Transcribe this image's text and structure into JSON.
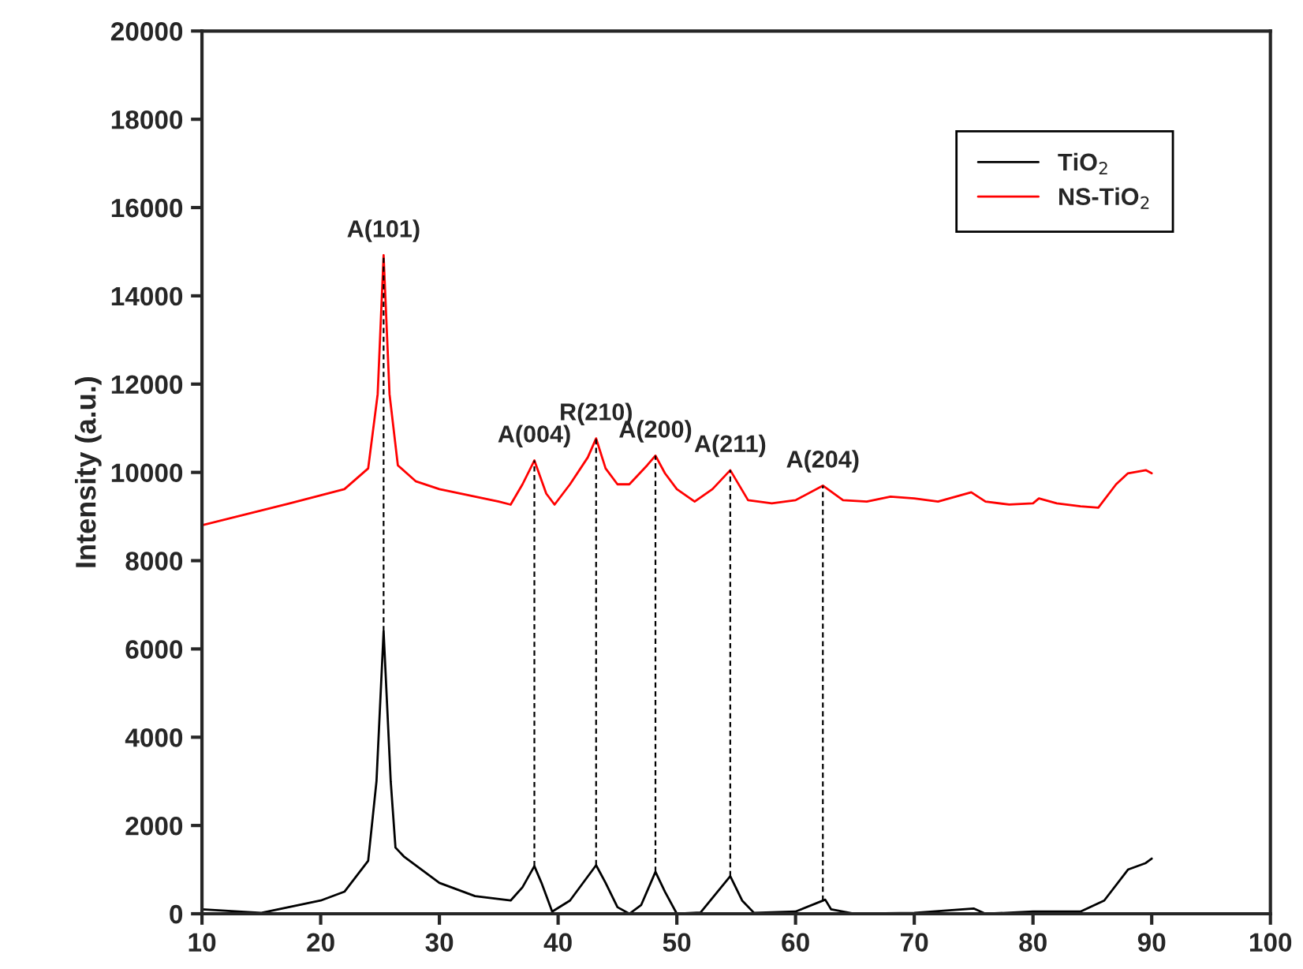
{
  "chart_data": {
    "type": "line",
    "ylabel": "Intensity (a.u.)",
    "xlim": [
      10,
      100
    ],
    "xticks": [
      10,
      20,
      30,
      40,
      50,
      60,
      70,
      80,
      90,
      100
    ],
    "ylim": [
      0,
      20000
    ],
    "yticks": [
      0,
      2000,
      4000,
      6000,
      8000,
      10000,
      12000,
      14000,
      16000,
      18000,
      20000
    ],
    "grid": false,
    "legend": "top right",
    "series": [
      {
        "name": "TiO$_{2}$",
        "color": "#000000",
        "x": [
          10,
          15,
          20,
          22,
          24,
          24.7,
          25.3,
          25.9,
          26.3,
          27,
          30,
          33,
          36,
          37,
          38,
          38.6,
          39.5,
          41,
          43.2,
          44,
          45,
          46,
          47,
          48.2,
          49,
          50,
          52,
          54.5,
          55.5,
          56.5,
          60,
          62.5,
          63,
          65,
          70,
          75,
          76,
          80,
          84,
          86,
          88,
          89.5,
          90
        ],
        "values": [
          100,
          20,
          300,
          500,
          1200,
          3000,
          6400,
          3000,
          1500,
          1300,
          700,
          400,
          300,
          600,
          1080,
          700,
          50,
          300,
          1100,
          700,
          150,
          0,
          200,
          950,
          500,
          0,
          30,
          850,
          300,
          20,
          50,
          320,
          100,
          0,
          20,
          120,
          0,
          50,
          50,
          300,
          1000,
          1150,
          1250
        ]
      },
      {
        "name": "NS-TiO$_{2}$",
        "color": "#ff0000",
        "x": [
          10,
          17.4,
          22,
          24,
          24.8,
          25.3,
          25.8,
          26.5,
          28,
          30,
          35,
          36,
          37,
          38,
          39,
          39.7,
          41,
          42.5,
          43.2,
          44,
          45,
          46,
          47.5,
          48.2,
          49,
          50,
          51.5,
          53,
          54.5,
          56,
          58,
          60,
          62.3,
          64,
          66,
          68,
          70,
          72,
          74.8,
          76,
          78,
          80,
          80.5,
          82,
          84,
          85.5,
          87,
          88,
          89.5,
          90
        ],
        "values": [
          8800,
          9300,
          9620,
          10090,
          11770,
          14920,
          11770,
          10160,
          9800,
          9620,
          9340,
          9270,
          9730,
          10270,
          9520,
          9270,
          9730,
          10340,
          10770,
          10090,
          9730,
          9730,
          10160,
          10380,
          9980,
          9620,
          9340,
          9620,
          10050,
          9370,
          9300,
          9370,
          9700,
          9370,
          9340,
          9450,
          9410,
          9340,
          9550,
          9340,
          9270,
          9300,
          9410,
          9300,
          9230,
          9200,
          9730,
          9980,
          10050,
          9980
        ]
      }
    ],
    "annotations": [
      {
        "text": "A(101)",
        "x": 25.3,
        "y": 14920
      },
      {
        "text": "A(004)",
        "x": 38.0,
        "y": 10270
      },
      {
        "text": "R(210)",
        "x": 43.2,
        "y": 10770
      },
      {
        "text": "A(200)",
        "x": 48.2,
        "y": 10380
      },
      {
        "text": "A(211)",
        "x": 54.5,
        "y": 10050
      },
      {
        "text": "A(204)",
        "x": 62.3,
        "y": 9700
      }
    ]
  }
}
